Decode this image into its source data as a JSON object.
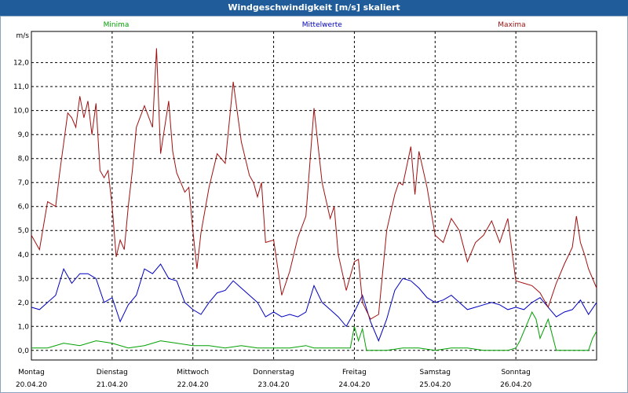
{
  "title": "Windgeschwindigkeit [m/s] skaliert",
  "chart_data": {
    "type": "line",
    "ylabel": "m/s",
    "ylim": [
      -0.4,
      13.3
    ],
    "yticks": [
      0.0,
      1.0,
      2.0,
      3.0,
      4.0,
      5.0,
      6.0,
      7.0,
      8.0,
      9.0,
      10.0,
      11.0,
      12.0
    ],
    "ytick_labels": [
      "0,0",
      "1,0",
      "2,0",
      "3,0",
      "4,0",
      "5,0",
      "6,0",
      "7,0",
      "8,0",
      "9,0",
      "10,0",
      "11,0",
      "12,0"
    ],
    "x_days": [
      {
        "day": "Montag",
        "date": "20.04.20"
      },
      {
        "day": "Dienstag",
        "date": "21.04.20"
      },
      {
        "day": "Mittwoch",
        "date": "22.04.20"
      },
      {
        "day": "Donnerstag",
        "date": "23.04.20"
      },
      {
        "day": "Freitag",
        "date": "24.04.20"
      },
      {
        "day": "Samstag",
        "date": "25.04.20"
      },
      {
        "day": "Sonntag",
        "date": "26.04.20"
      }
    ],
    "x_unit": "day index from Montag 20.04.20 00:00",
    "xlim": [
      0,
      7
    ],
    "grid": true,
    "legend_placement": "top",
    "series": [
      {
        "name": "Minima",
        "color": "#00a000",
        "x": [
          0,
          0.2,
          0.4,
          0.6,
          0.8,
          1.0,
          1.2,
          1.4,
          1.6,
          1.8,
          2.0,
          2.2,
          2.4,
          2.6,
          2.8,
          3.0,
          3.2,
          3.4,
          3.5,
          3.7,
          3.9,
          3.95,
          4.0,
          4.05,
          4.1,
          4.15,
          4.2,
          4.4,
          4.6,
          4.8,
          5.0,
          5.2,
          5.4,
          5.6,
          5.8,
          5.9,
          6.0,
          6.05,
          6.1,
          6.15,
          6.2,
          6.25,
          6.3,
          6.4,
          6.5,
          6.8,
          6.9,
          6.95,
          7.0
        ],
        "y": [
          0.1,
          0.1,
          0.3,
          0.2,
          0.4,
          0.3,
          0.1,
          0.2,
          0.4,
          0.3,
          0.2,
          0.2,
          0.1,
          0.2,
          0.1,
          0.1,
          0.1,
          0.2,
          0.1,
          0.1,
          0.1,
          0.1,
          1.0,
          0.4,
          0.9,
          0.0,
          0.0,
          0.0,
          0.1,
          0.1,
          0.0,
          0.1,
          0.1,
          0.0,
          0.0,
          0.0,
          0.1,
          0.4,
          0.8,
          1.2,
          1.6,
          1.3,
          0.5,
          1.3,
          0.0,
          0.0,
          0.0,
          0.5,
          0.8
        ]
      },
      {
        "name": "Mittelwerte",
        "color": "#0000c0",
        "x": [
          0,
          0.1,
          0.2,
          0.3,
          0.4,
          0.5,
          0.6,
          0.7,
          0.8,
          0.9,
          1.0,
          1.1,
          1.2,
          1.3,
          1.4,
          1.5,
          1.6,
          1.7,
          1.8,
          1.9,
          2.0,
          2.1,
          2.2,
          2.3,
          2.4,
          2.5,
          2.6,
          2.7,
          2.8,
          2.9,
          3.0,
          3.1,
          3.2,
          3.3,
          3.4,
          3.5,
          3.6,
          3.7,
          3.8,
          3.9,
          4.0,
          4.1,
          4.2,
          4.3,
          4.4,
          4.5,
          4.6,
          4.7,
          4.8,
          4.9,
          5.0,
          5.1,
          5.2,
          5.3,
          5.4,
          5.5,
          5.6,
          5.7,
          5.8,
          5.9,
          6.0,
          6.1,
          6.2,
          6.3,
          6.4,
          6.5,
          6.6,
          6.7,
          6.8,
          6.9,
          7.0
        ],
        "y": [
          1.8,
          1.7,
          2.0,
          2.3,
          3.4,
          2.8,
          3.2,
          3.2,
          3.0,
          2.0,
          2.2,
          1.2,
          1.9,
          2.3,
          3.4,
          3.2,
          3.6,
          3.0,
          2.9,
          2.0,
          1.7,
          1.5,
          2.0,
          2.4,
          2.5,
          2.9,
          2.6,
          2.3,
          2.0,
          1.4,
          1.6,
          1.4,
          1.5,
          1.4,
          1.6,
          2.7,
          2.0,
          1.7,
          1.4,
          1.0,
          1.6,
          2.3,
          1.2,
          0.4,
          1.3,
          2.5,
          3.0,
          2.9,
          2.6,
          2.2,
          2.0,
          2.1,
          2.3,
          2.0,
          1.7,
          1.8,
          1.9,
          2.0,
          1.9,
          1.7,
          1.8,
          1.7,
          2.0,
          2.2,
          1.8,
          1.4,
          1.6,
          1.7,
          2.1,
          1.5,
          2.0
        ]
      },
      {
        "name": "Maxima",
        "color": "#a01010",
        "x": [
          0,
          0.1,
          0.2,
          0.3,
          0.35,
          0.45,
          0.5,
          0.55,
          0.6,
          0.65,
          0.7,
          0.75,
          0.8,
          0.85,
          0.9,
          0.95,
          1.0,
          1.05,
          1.1,
          1.15,
          1.2,
          1.25,
          1.3,
          1.4,
          1.5,
          1.55,
          1.6,
          1.7,
          1.75,
          1.8,
          1.85,
          1.9,
          1.95,
          2.0,
          2.05,
          2.1,
          2.2,
          2.3,
          2.4,
          2.5,
          2.6,
          2.7,
          2.75,
          2.8,
          2.85,
          2.9,
          3.0,
          3.1,
          3.2,
          3.3,
          3.4,
          3.5,
          3.6,
          3.7,
          3.75,
          3.8,
          3.9,
          4.0,
          4.05,
          4.1,
          4.2,
          4.3,
          4.4,
          4.5,
          4.55,
          4.6,
          4.7,
          4.75,
          4.8,
          4.9,
          5.0,
          5.1,
          5.2,
          5.3,
          5.4,
          5.5,
          5.6,
          5.7,
          5.8,
          5.9,
          6.0,
          6.1,
          6.2,
          6.3,
          6.4,
          6.5,
          6.6,
          6.7,
          6.75,
          6.8,
          6.85,
          6.9,
          7.0
        ],
        "y": [
          4.8,
          4.2,
          6.2,
          6.0,
          7.4,
          9.9,
          9.7,
          9.3,
          10.6,
          9.7,
          10.4,
          9.0,
          10.3,
          7.5,
          7.2,
          7.5,
          6.0,
          3.9,
          4.6,
          4.2,
          6.0,
          7.5,
          9.3,
          10.2,
          9.3,
          12.6,
          8.2,
          10.4,
          8.3,
          7.4,
          7.0,
          6.6,
          6.8,
          5.0,
          3.4,
          4.9,
          6.8,
          8.2,
          7.8,
          11.2,
          8.7,
          7.3,
          7.0,
          6.4,
          7.0,
          4.5,
          4.6,
          2.3,
          3.3,
          4.7,
          5.6,
          10.1,
          7.0,
          5.5,
          6.0,
          4.0,
          2.5,
          3.7,
          3.8,
          2.0,
          1.3,
          1.5,
          5.0,
          6.5,
          7.0,
          6.9,
          8.5,
          6.5,
          8.3,
          6.8,
          4.8,
          4.5,
          5.5,
          5.0,
          3.7,
          4.5,
          4.8,
          5.4,
          4.5,
          5.5,
          2.9,
          2.8,
          2.7,
          2.4,
          1.8,
          2.8,
          3.6,
          4.3,
          5.6,
          4.5,
          4.0,
          3.4,
          2.6
        ]
      }
    ]
  }
}
